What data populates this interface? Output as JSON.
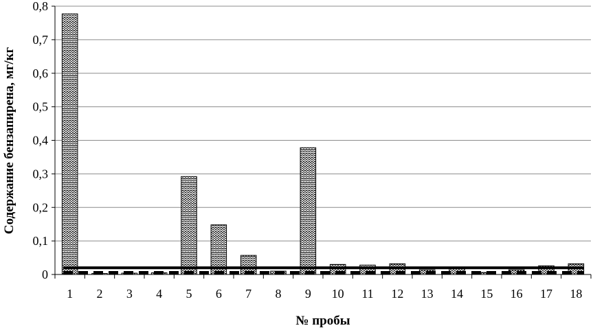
{
  "chart_data": {
    "type": "bar",
    "xlabel": "№ пробы",
    "ylabel": "Содержание бензапирена, мг/кг",
    "categories": [
      "1",
      "2",
      "3",
      "4",
      "5",
      "6",
      "7",
      "8",
      "9",
      "10",
      "11",
      "12",
      "13",
      "14",
      "15",
      "16",
      "17",
      "18"
    ],
    "series": [
      {
        "pattern": "zigzag-hatch",
        "values": [
          0.777,
          0.003,
          0.004,
          0.005,
          0.292,
          0.148,
          0.057,
          0.01,
          0.378,
          0.03,
          0.028,
          0.032,
          0.014,
          0.022,
          0.006,
          0.014,
          0.026,
          0.032
        ]
      }
    ],
    "reference_lines": [
      {
        "value": 0.02,
        "style": "solid",
        "color": "#000000"
      },
      {
        "value": 0.005,
        "style": "dashed",
        "color": "#000000"
      }
    ],
    "ylim": [
      0,
      0.8
    ],
    "yticks": [
      "0",
      "0,1",
      "0,2",
      "0,3",
      "0,4",
      "0,5",
      "0,6",
      "0,7",
      "0,8"
    ],
    "grid": true,
    "legend": "none"
  }
}
